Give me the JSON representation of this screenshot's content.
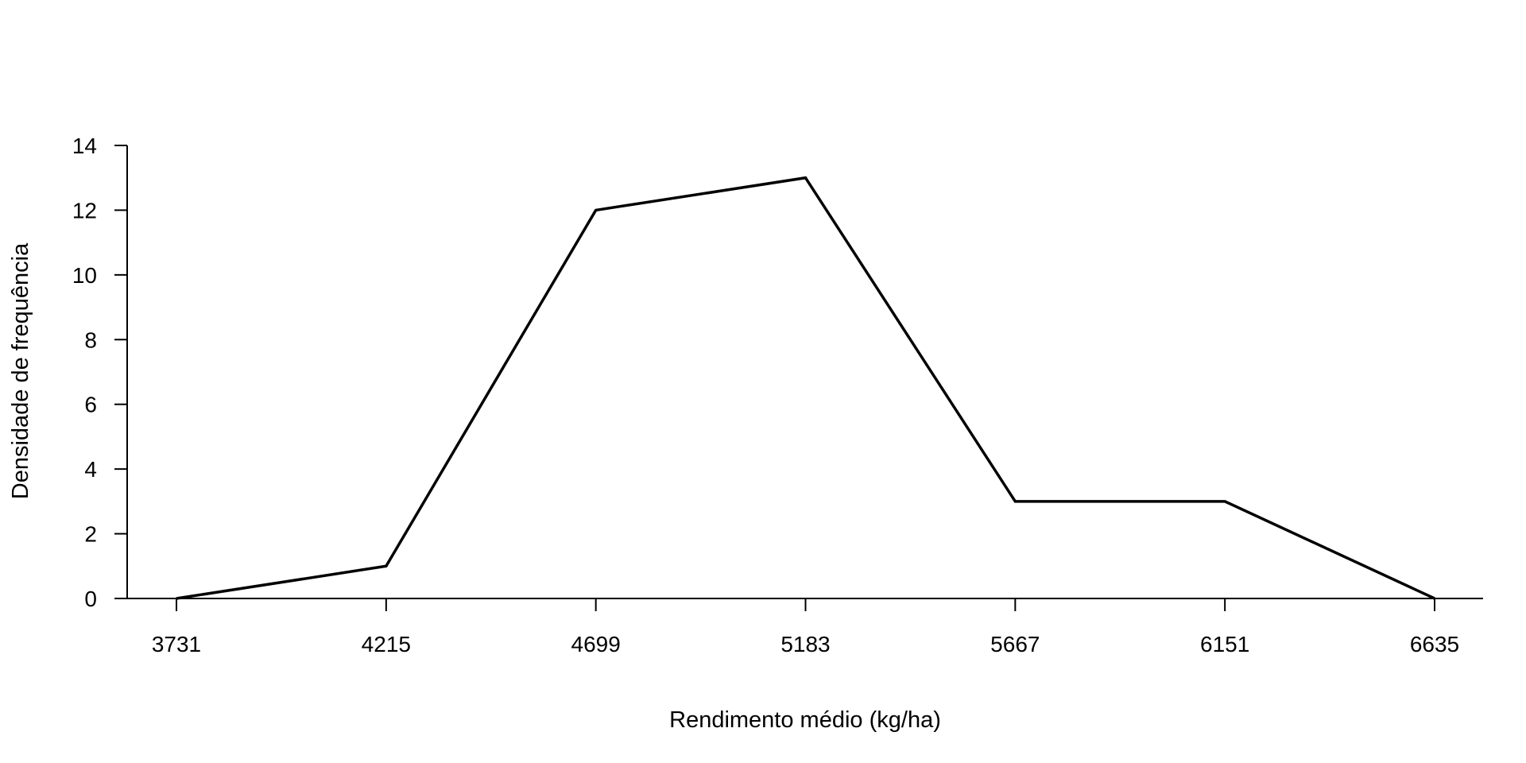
{
  "chart_data": {
    "type": "line",
    "title": "",
    "xlabel": "Rendimento médio (kg/ha)",
    "ylabel": "Densidade de frequência",
    "x": [
      3731,
      4215,
      4699,
      5183,
      5667,
      6151,
      6635
    ],
    "xticks": [
      "3731",
      "4215",
      "4699",
      "5183",
      "5667",
      "6151",
      "6635"
    ],
    "series": [
      {
        "values": [
          0,
          1,
          12,
          13,
          3,
          3,
          0
        ]
      }
    ],
    "ylim": [
      0,
      14
    ],
    "yticks": [
      "0",
      "2",
      "4",
      "6",
      "8",
      "10",
      "12",
      "14"
    ],
    "grid": false,
    "legend": "none",
    "line_color": "#000000"
  }
}
